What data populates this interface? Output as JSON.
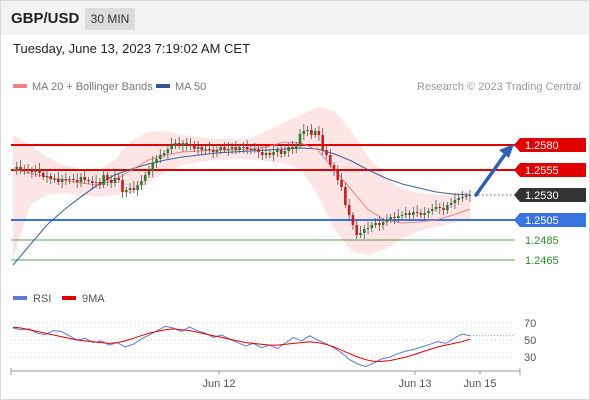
{
  "header": {
    "symbol": "GBP/USD",
    "timeframe": "30 MIN"
  },
  "timestamp": "Tuesday, June 13, 2023 7:19:02 AM CET",
  "legend": {
    "bollinger": {
      "label": "MA 20 + Bollinger Bands",
      "color": "#f08080"
    },
    "ma50": {
      "label": "MA 50",
      "color": "#2f5597"
    },
    "credit": "Research © 2023 Trading Central"
  },
  "rsi_legend": {
    "rsi": {
      "label": "RSI",
      "color": "#5b7bd5"
    },
    "ma9": {
      "label": "9MA",
      "color": "#e00000"
    }
  },
  "colors": {
    "resistance": "#e00000",
    "pivot": "#3a74e0",
    "support": "#2e8b2e",
    "current": "#333333",
    "arrow": "#2e62b0",
    "band_fill": "#fde0e0",
    "candle_up": "#2e7d2e",
    "candle_down": "#c81e1e"
  },
  "chart_data": [
    {
      "type": "candlestick",
      "title": "GBP/USD",
      "ylim": [
        1.2445,
        1.263
      ],
      "x_ticks": [
        "Jun 12",
        "Jun 13",
        "Jun 15"
      ],
      "levels": [
        {
          "label": "1.2580",
          "value": 1.258,
          "kind": "resistance"
        },
        {
          "label": "1.2555",
          "value": 1.2555,
          "kind": "resistance"
        },
        {
          "label": "1.2530",
          "value": 1.253,
          "kind": "current"
        },
        {
          "label": "1.2505",
          "value": 1.2505,
          "kind": "pivot"
        },
        {
          "label": "1.2485",
          "value": 1.2485,
          "kind": "support"
        },
        {
          "label": "1.2465",
          "value": 1.2465,
          "kind": "support"
        }
      ],
      "series": [
        {
          "name": "Price",
          "values": [
            1.2556,
            1.2558,
            1.2556,
            1.2554,
            1.2555,
            1.2553,
            1.2555,
            1.2552,
            1.2548,
            1.2549,
            1.2546,
            1.2546,
            1.2543,
            1.2546,
            1.2545,
            1.2546,
            1.2545,
            1.2543,
            1.2548,
            1.2545,
            1.2544,
            1.2542,
            1.2543,
            1.254,
            1.255,
            1.2545,
            1.2542,
            1.2547,
            1.2545,
            1.2533,
            1.2535,
            1.2537,
            1.2535,
            1.254,
            1.2544,
            1.255,
            1.2554,
            1.2562,
            1.2566,
            1.257,
            1.2572,
            1.2576,
            1.258,
            1.2582,
            1.2579,
            1.2582,
            1.2579,
            1.258,
            1.2576,
            1.2578,
            1.2575,
            1.2576,
            1.2575,
            1.2573,
            1.2575,
            1.2578,
            1.2575,
            1.2576,
            1.2578,
            1.2575,
            1.2578,
            1.2578,
            1.2576,
            1.2575,
            1.2576,
            1.2573,
            1.257,
            1.2572,
            1.257,
            1.2573,
            1.2575,
            1.2571,
            1.2574,
            1.2578,
            1.2576,
            1.258,
            1.2591,
            1.2594,
            1.2595,
            1.259,
            1.2594,
            1.259,
            1.2575,
            1.257,
            1.256,
            1.2555,
            1.2545,
            1.2538,
            1.252,
            1.251,
            1.25,
            1.249,
            1.2492,
            1.2496,
            1.2497,
            1.25,
            1.2502,
            1.25,
            1.2503,
            1.2505,
            1.2508,
            1.2507,
            1.2509,
            1.251,
            1.2512,
            1.251,
            1.2513,
            1.2512,
            1.251,
            1.2512,
            1.2514,
            1.2516,
            1.2518,
            1.2517,
            1.2515,
            1.252,
            1.2522,
            1.2525,
            1.2527,
            1.2528,
            1.2529,
            1.253
          ]
        },
        {
          "name": "MA 20",
          "values": [
            1.2556,
            1.2552,
            1.2548,
            1.2545,
            1.2542,
            1.254,
            1.2545,
            1.2555,
            1.2565,
            1.257,
            1.2573,
            1.2574,
            1.2575,
            1.2575,
            1.2576,
            1.2578,
            1.2583,
            1.2582,
            1.2575,
            1.2555,
            1.2535,
            1.2515,
            1.2505,
            1.2502,
            1.2503,
            1.2505,
            1.251,
            1.2516
          ]
        },
        {
          "name": "MA 50",
          "values": [
            1.246,
            1.248,
            1.25,
            1.2515,
            1.2528,
            1.254,
            1.255,
            1.2556,
            1.2561,
            1.2565,
            1.2568,
            1.257,
            1.2572,
            1.2573,
            1.2574,
            1.2575,
            1.2576,
            1.2577,
            1.2576,
            1.2571,
            1.2564,
            1.2555,
            1.2547,
            1.2541,
            1.2537,
            1.2533,
            1.2531,
            1.253
          ]
        },
        {
          "name": "Bollinger Upper",
          "values": [
            1.259,
            1.258,
            1.2568,
            1.256,
            1.2556,
            1.2554,
            1.2565,
            1.2584,
            1.2593,
            1.2594,
            1.259,
            1.2588,
            1.2586,
            1.2586,
            1.2587,
            1.2594,
            1.2602,
            1.261,
            1.2618,
            1.2614,
            1.2594,
            1.2568,
            1.2548,
            1.2536,
            1.2532,
            1.253,
            1.2532,
            1.2534
          ]
        },
        {
          "name": "Bollinger Lower",
          "values": [
            1.2465,
            1.252,
            1.253,
            1.2532,
            1.253,
            1.2528,
            1.253,
            1.2532,
            1.2542,
            1.2553,
            1.256,
            1.2563,
            1.2565,
            1.2566,
            1.2566,
            1.2564,
            1.2562,
            1.2556,
            1.253,
            1.2495,
            1.2473,
            1.247,
            1.2476,
            1.2486,
            1.2494,
            1.2498,
            1.2502,
            1.2506
          ]
        }
      ]
    },
    {
      "type": "line",
      "title": "RSI",
      "ylim": [
        15,
        85
      ],
      "y_ticks": [
        70,
        50,
        30
      ],
      "series": [
        {
          "name": "RSI",
          "values": [
            64,
            62,
            63,
            58,
            56,
            61,
            60,
            55,
            50,
            52,
            47,
            49,
            44,
            47,
            42,
            45,
            51,
            56,
            61,
            66,
            64,
            60,
            65,
            61,
            58,
            53,
            56,
            51,
            47,
            43,
            46,
            41,
            44,
            40,
            47,
            53,
            49,
            55,
            50,
            46,
            41,
            35,
            27,
            22,
            19,
            23,
            28,
            30,
            34,
            37,
            39,
            42,
            45,
            48,
            46,
            52,
            57,
            55
          ]
        },
        {
          "name": "9MA",
          "values": [
            65,
            64,
            62,
            60,
            58,
            56,
            54,
            52,
            50,
            49,
            48,
            47,
            46,
            47,
            49,
            52,
            55,
            58,
            60,
            62,
            63,
            62,
            61,
            59,
            57,
            55,
            53,
            51,
            49,
            47,
            46,
            45,
            44,
            44,
            45,
            46,
            47,
            48,
            47,
            45,
            42,
            38,
            34,
            30,
            27,
            25,
            25,
            26,
            28,
            30,
            33,
            36,
            39,
            42,
            44,
            46,
            48,
            51
          ]
        }
      ]
    }
  ]
}
